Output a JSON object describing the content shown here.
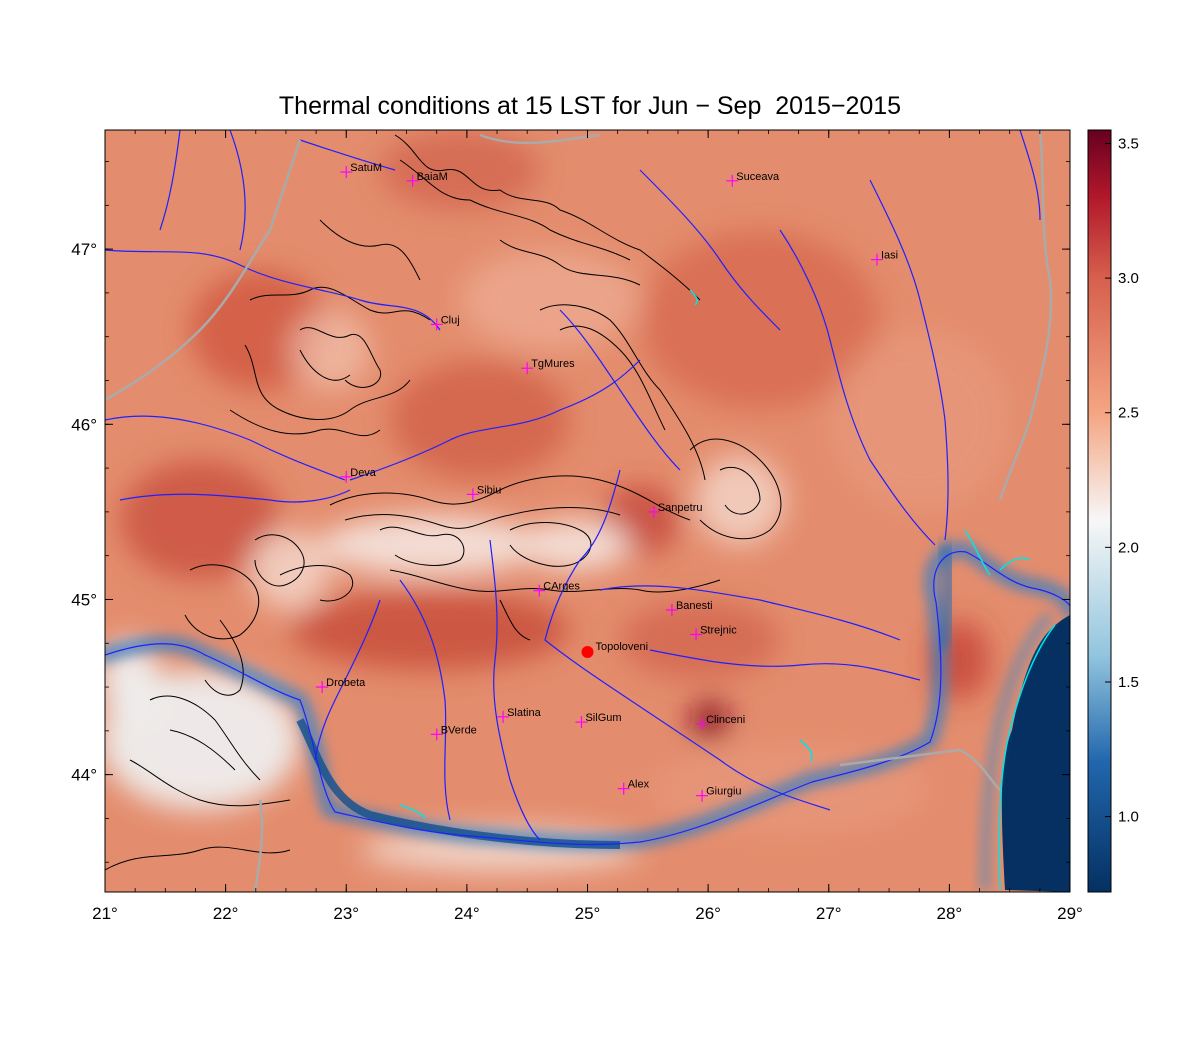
{
  "title": "Thermal conditions at 15 LST for Jun − Sep  2015−2015",
  "map": {
    "lon_range": [
      21,
      29
    ],
    "lat_range": [
      43.33,
      47.68
    ],
    "x_ticks": [
      {
        "value": 21,
        "label": "21°"
      },
      {
        "value": 22,
        "label": "22°"
      },
      {
        "value": 23,
        "label": "23°"
      },
      {
        "value": 24,
        "label": "24°"
      },
      {
        "value": 25,
        "label": "25°"
      },
      {
        "value": 26,
        "label": "26°"
      },
      {
        "value": 27,
        "label": "27°"
      },
      {
        "value": 28,
        "label": "28°"
      },
      {
        "value": 29,
        "label": "29°"
      }
    ],
    "y_ticks": [
      {
        "value": 44,
        "label": "44°"
      },
      {
        "value": 45,
        "label": "45°"
      },
      {
        "value": 46,
        "label": "46°"
      },
      {
        "value": 47,
        "label": "47°"
      }
    ],
    "cities": [
      {
        "name": "SatuM",
        "lon": 23.0,
        "lat": 47.44
      },
      {
        "name": "BaiaM",
        "lon": 23.55,
        "lat": 47.39
      },
      {
        "name": "Suceava",
        "lon": 26.2,
        "lat": 47.39
      },
      {
        "name": "Iasi",
        "lon": 27.4,
        "lat": 46.94
      },
      {
        "name": "Cluj",
        "lon": 23.75,
        "lat": 46.57
      },
      {
        "name": "TgMures",
        "lon": 24.5,
        "lat": 46.32
      },
      {
        "name": "Deva",
        "lon": 23.0,
        "lat": 45.7
      },
      {
        "name": "Sibiu",
        "lon": 24.05,
        "lat": 45.6
      },
      {
        "name": "Sanpetru",
        "lon": 25.55,
        "lat": 45.5
      },
      {
        "name": "CArges",
        "lon": 24.6,
        "lat": 45.05
      },
      {
        "name": "Banesti",
        "lon": 25.7,
        "lat": 44.94
      },
      {
        "name": "Strejnic",
        "lon": 25.9,
        "lat": 44.8
      },
      {
        "name": "Drobeta",
        "lon": 22.8,
        "lat": 44.5
      },
      {
        "name": "BVerde",
        "lon": 23.75,
        "lat": 44.23
      },
      {
        "name": "Slatina",
        "lon": 24.3,
        "lat": 44.33
      },
      {
        "name": "SilGum",
        "lon": 24.95,
        "lat": 44.3
      },
      {
        "name": "Clinceni",
        "lon": 25.95,
        "lat": 44.29
      },
      {
        "name": "Alex",
        "lon": 25.3,
        "lat": 43.92
      },
      {
        "name": "Giurgiu",
        "lon": 25.95,
        "lat": 43.88
      }
    ],
    "highlight_station": {
      "name": "Topoloveni",
      "lon": 25.0,
      "lat": 44.7,
      "color": "#ff0000"
    },
    "colors": {
      "land_warm": "#dd7458",
      "river": "#2020ff",
      "border": "#aaaaaa",
      "contour": "#000000",
      "lake": "#00e5e5",
      "city_marker": "#ff00ff"
    }
  },
  "colorbar": {
    "min": 0.72,
    "max": 3.55,
    "ticks": [
      {
        "value": 1.0,
        "label": "1.0"
      },
      {
        "value": 1.5,
        "label": "1.5"
      },
      {
        "value": 2.0,
        "label": "2.0"
      },
      {
        "value": 2.5,
        "label": "2.5"
      },
      {
        "value": 3.0,
        "label": "3.0"
      },
      {
        "value": 3.5,
        "label": "3.5"
      }
    ],
    "stops": [
      {
        "value": 0.72,
        "color": "#053061"
      },
      {
        "value": 1.2,
        "color": "#2166ac"
      },
      {
        "value": 1.6,
        "color": "#92c5de"
      },
      {
        "value": 2.1,
        "color": "#f7f7f7"
      },
      {
        "value": 2.5,
        "color": "#f4a582"
      },
      {
        "value": 3.0,
        "color": "#d6604d"
      },
      {
        "value": 3.3,
        "color": "#b2182b"
      },
      {
        "value": 3.55,
        "color": "#67001f"
      }
    ]
  }
}
